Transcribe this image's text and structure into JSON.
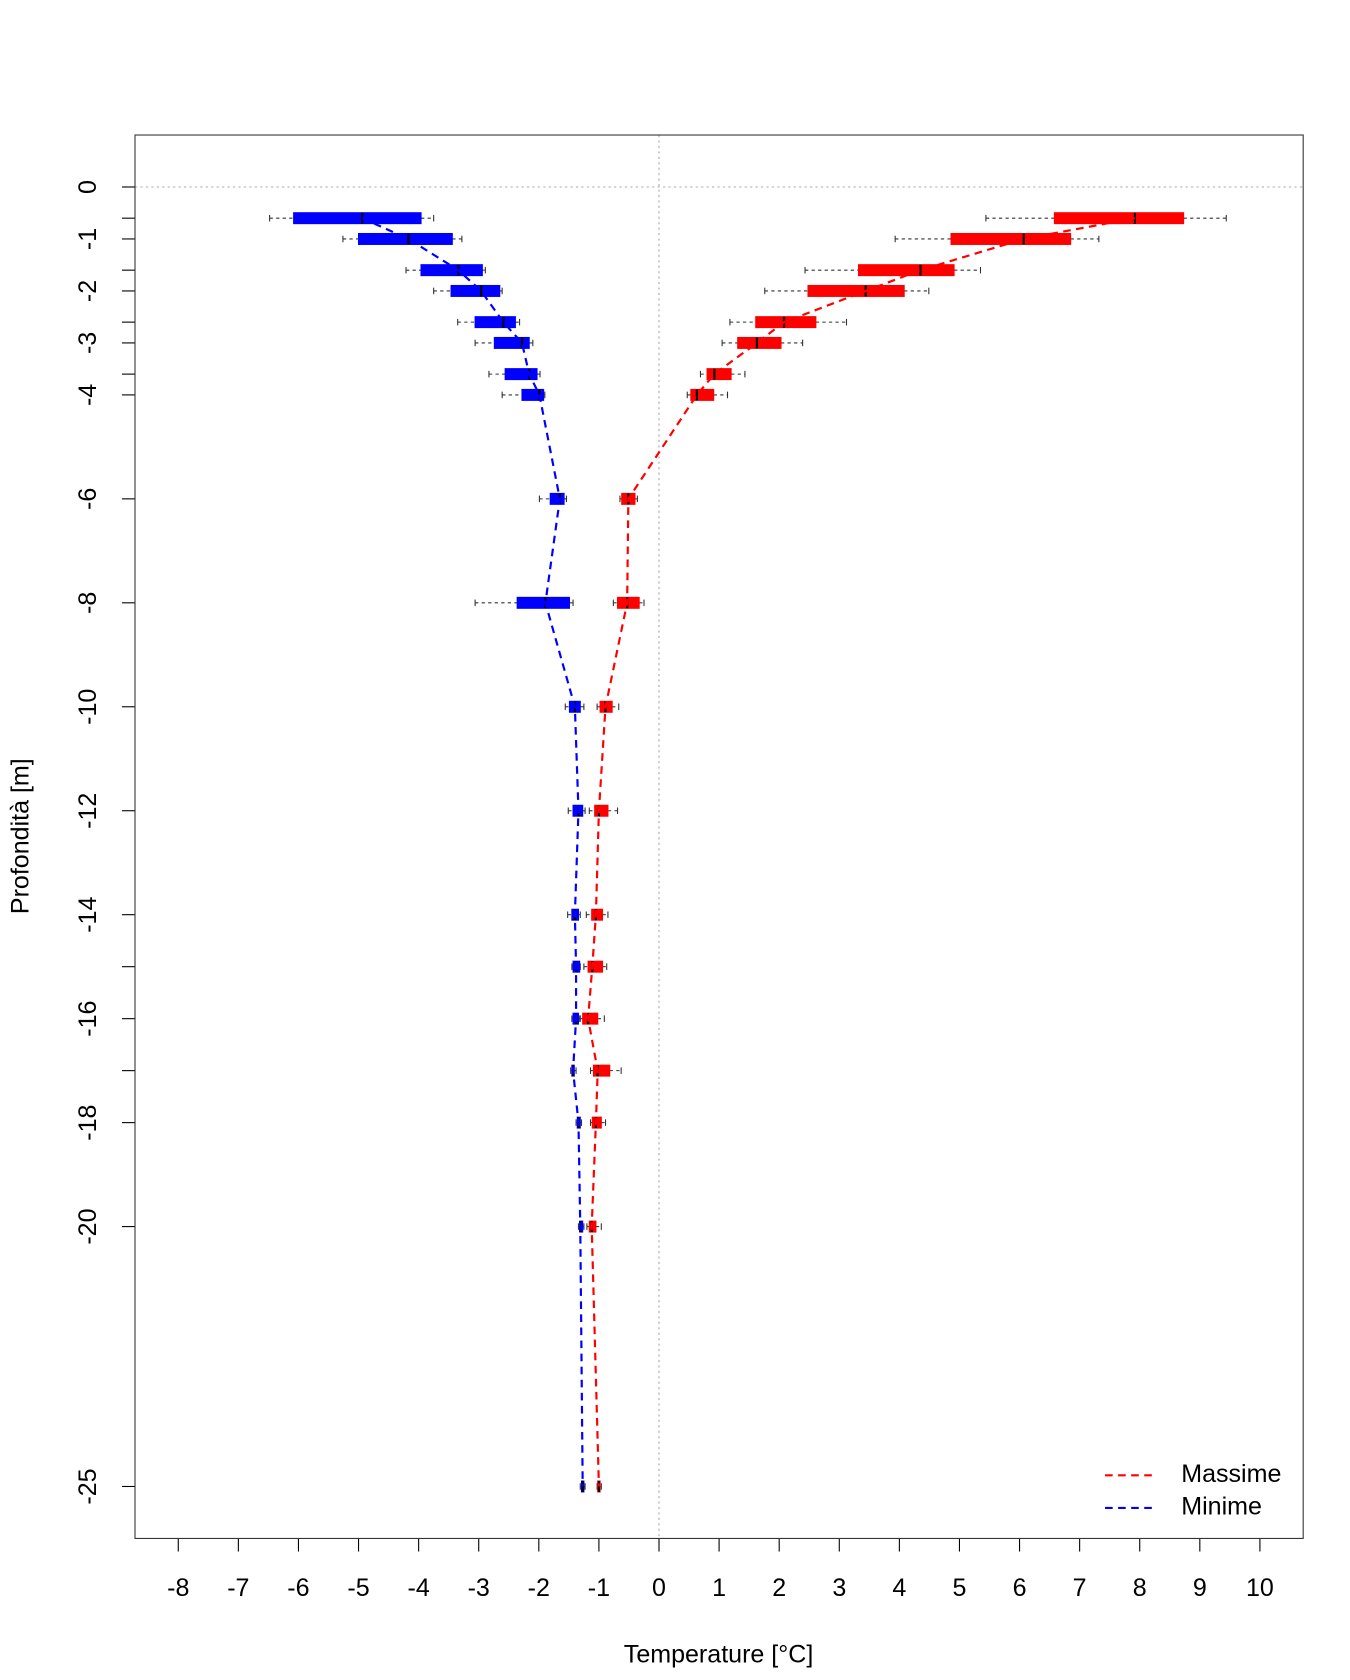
{
  "chart_data": {
    "type": "boxplot",
    "orientation": "horizontal",
    "x_label": "Temperature [°C]",
    "y_label": "Profondità [m]",
    "xlim": [
      -8.72,
      10.72
    ],
    "ylim": [
      -26,
      1
    ],
    "xticks": [
      -8,
      -7,
      -6,
      -5,
      -4,
      -3,
      -2,
      -1,
      0,
      1,
      2,
      3,
      4,
      5,
      6,
      7,
      8,
      9,
      10
    ],
    "yticks": [
      0,
      -1,
      -2,
      -3,
      -4,
      -6,
      -8,
      -10,
      -12,
      -14,
      -16,
      -18,
      -20,
      -25
    ],
    "yminor": [
      -0.6,
      -1.6,
      -2.6,
      -3.6,
      -15,
      -17
    ],
    "hlines": [
      0
    ],
    "vlines": [
      0
    ],
    "y": [
      -0.6,
      -1,
      -1.6,
      -2,
      -2.6,
      -3,
      -3.6,
      -4,
      -6,
      -8,
      -10,
      -12,
      -14,
      -15,
      -16,
      -17,
      -18,
      -20,
      -25
    ],
    "legend": "bottomright",
    "series": [
      {
        "name": "Massime",
        "color": "#ff0000",
        "values": [
          [
            5.44,
            6.58,
            7.92,
            8.73,
            9.44
          ],
          [
            3.93,
            4.86,
            6.07,
            6.85,
            7.32
          ],
          [
            2.43,
            3.32,
            4.35,
            4.91,
            5.35
          ],
          [
            1.76,
            2.48,
            3.44,
            4.08,
            4.49
          ],
          [
            1.18,
            1.61,
            2.08,
            2.61,
            3.12
          ],
          [
            1.05,
            1.31,
            1.63,
            2.03,
            2.39
          ],
          [
            0.69,
            0.8,
            0.92,
            1.2,
            1.43
          ],
          [
            0.47,
            0.53,
            0.63,
            0.91,
            1.14
          ],
          [
            -0.65,
            -0.62,
            -0.51,
            -0.4,
            -0.36
          ],
          [
            -0.76,
            -0.69,
            -0.53,
            -0.33,
            -0.25
          ],
          [
            -1.03,
            -0.98,
            -0.89,
            -0.78,
            -0.67
          ],
          [
            -1.16,
            -1.07,
            -1.0,
            -0.85,
            -0.69
          ],
          [
            -1.21,
            -1.12,
            -1.05,
            -0.94,
            -0.85
          ],
          [
            -1.25,
            -1.18,
            -1.11,
            -0.94,
            -0.87
          ],
          [
            -1.31,
            -1.27,
            -1.18,
            -1.02,
            -0.91
          ],
          [
            -1.14,
            -1.09,
            -1.02,
            -0.82,
            -0.63
          ],
          [
            -1.14,
            -1.11,
            -1.05,
            -0.96,
            -0.89
          ],
          [
            -1.2,
            -1.16,
            -1.12,
            -1.05,
            -0.96
          ],
          [
            -1.03,
            -1.02,
            -1.0,
            -0.98,
            -0.96
          ]
        ]
      },
      {
        "name": "Minime",
        "color": "#0000ff",
        "values": [
          [
            -6.48,
            -6.08,
            -4.94,
            -3.96,
            -3.75
          ],
          [
            -5.26,
            -5.0,
            -4.17,
            -3.44,
            -3.28
          ],
          [
            -4.21,
            -3.96,
            -3.34,
            -2.94,
            -2.89
          ],
          [
            -3.75,
            -3.46,
            -2.96,
            -2.65,
            -2.61
          ],
          [
            -3.35,
            -3.06,
            -2.59,
            -2.39,
            -2.32
          ],
          [
            -3.06,
            -2.74,
            -2.28,
            -2.16,
            -2.1
          ],
          [
            -2.83,
            -2.56,
            -2.16,
            -2.03,
            -1.98
          ],
          [
            -2.61,
            -2.28,
            -1.99,
            -1.92,
            -1.9
          ],
          [
            -1.99,
            -1.81,
            -1.65,
            -1.58,
            -1.54
          ],
          [
            -3.06,
            -2.36,
            -1.89,
            -1.49,
            -1.43
          ],
          [
            -1.56,
            -1.49,
            -1.4,
            -1.31,
            -1.25
          ],
          [
            -1.51,
            -1.43,
            -1.34,
            -1.27,
            -1.23
          ],
          [
            -1.52,
            -1.45,
            -1.4,
            -1.34,
            -1.31
          ],
          [
            -1.45,
            -1.43,
            -1.38,
            -1.32,
            -1.31
          ],
          [
            -1.45,
            -1.43,
            -1.38,
            -1.34,
            -1.32
          ],
          [
            -1.47,
            -1.45,
            -1.43,
            -1.41,
            -1.38
          ],
          [
            -1.38,
            -1.36,
            -1.34,
            -1.31,
            -1.29
          ],
          [
            -1.34,
            -1.32,
            -1.31,
            -1.27,
            -1.25
          ],
          [
            -1.31,
            -1.29,
            -1.27,
            -1.25,
            -1.23
          ]
        ]
      }
    ]
  }
}
